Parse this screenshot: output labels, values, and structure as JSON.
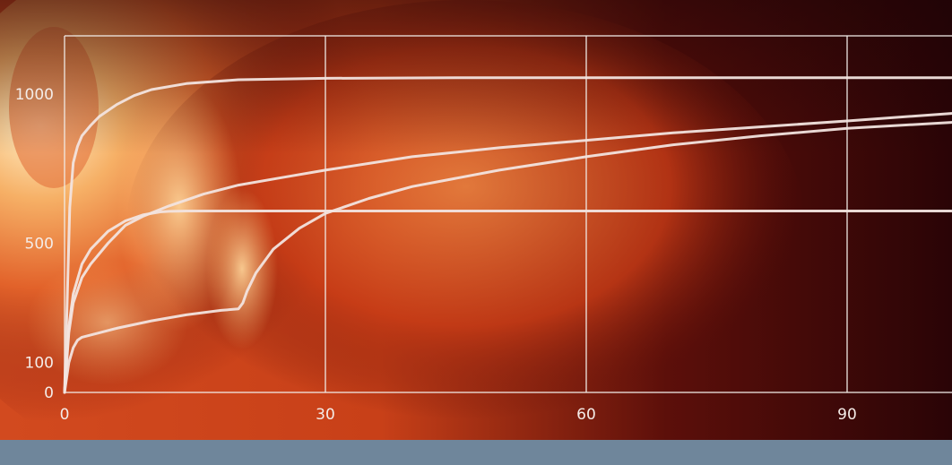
{
  "chart_data": {
    "type": "line",
    "title": "",
    "xlabel": "",
    "ylabel": "",
    "xlim": [
      0,
      102
    ],
    "ylim": [
      0,
      1200
    ],
    "x_ticks": [
      0,
      30,
      60,
      90
    ],
    "y_ticks": [
      0,
      100,
      500,
      1000
    ],
    "grid": true,
    "series": [
      {
        "x": [
          0,
          0.3,
          0.6,
          1,
          1.5,
          2,
          3,
          4,
          6,
          8,
          10,
          14,
          20,
          30,
          45,
          60,
          75,
          90,
          102
        ],
        "y": [
          0,
          300,
          620,
          770,
          825,
          860,
          895,
          925,
          965,
          995,
          1015,
          1035,
          1048,
          1053,
          1055,
          1055,
          1055,
          1055,
          1055
        ]
      },
      {
        "x": [
          0,
          0.5,
          1,
          2,
          3,
          5,
          7,
          9,
          12,
          16,
          20,
          25,
          30,
          40,
          50,
          60,
          70,
          80,
          90,
          102
        ],
        "y": [
          0,
          200,
          300,
          385,
          430,
          500,
          560,
          590,
          625,
          665,
          695,
          720,
          745,
          790,
          820,
          845,
          870,
          890,
          910,
          935
        ]
      },
      {
        "x": [
          0,
          0.5,
          1,
          2,
          3,
          5,
          7,
          9,
          11,
          12,
          14,
          20,
          30,
          45,
          60,
          75,
          90,
          102
        ],
        "y": [
          0,
          220,
          330,
          430,
          480,
          540,
          575,
          595,
          605,
          607,
          608,
          608,
          608,
          608,
          608,
          608,
          608,
          608
        ]
      },
      {
        "x": [
          0,
          0.5,
          1,
          1.5,
          2,
          4,
          6,
          10,
          14,
          18,
          20,
          20.5,
          21,
          22,
          24,
          27,
          30,
          35,
          40,
          50,
          60,
          70,
          80,
          90,
          102
        ],
        "y": [
          0,
          100,
          150,
          175,
          185,
          200,
          215,
          240,
          260,
          275,
          280,
          300,
          340,
          400,
          480,
          550,
          600,
          650,
          690,
          745,
          790,
          830,
          860,
          885,
          905
        ]
      }
    ]
  },
  "style": {
    "line_color": "#f2e4df",
    "grid_color": "#f1ece8",
    "label_color": "#f4ece8",
    "footer_color": "#6f869b"
  }
}
